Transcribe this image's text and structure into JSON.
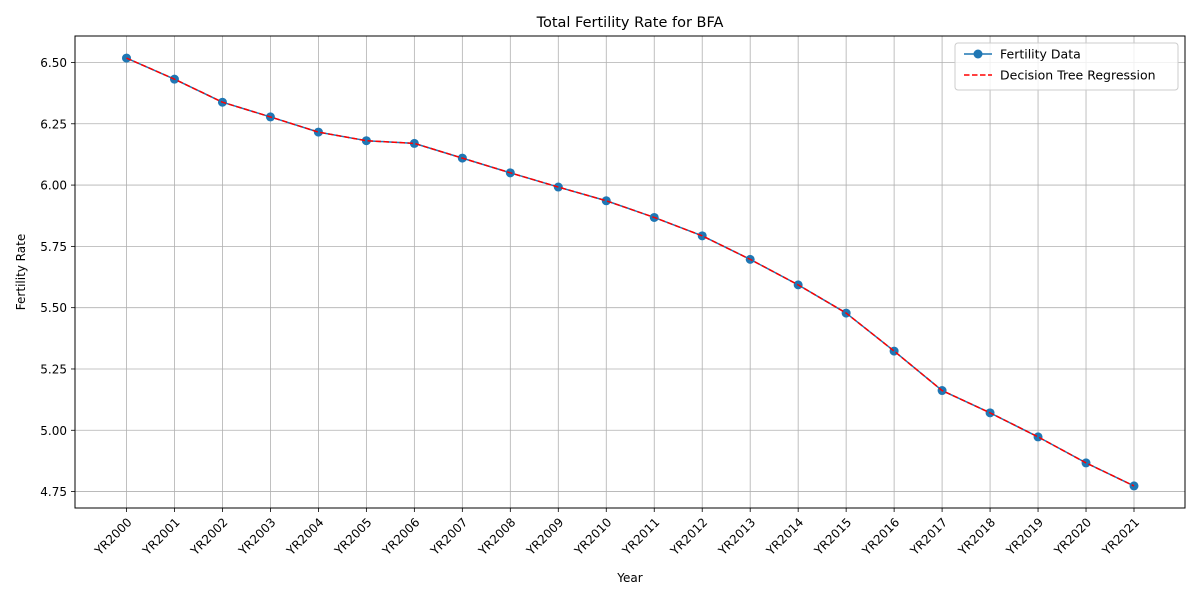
{
  "chart_data": {
    "type": "line",
    "title": "Total Fertility Rate for BFA",
    "xlabel": "Year",
    "ylabel": "Fertility Rate",
    "categories": [
      "YR2000",
      "YR2001",
      "YR2002",
      "YR2003",
      "YR2004",
      "YR2005",
      "YR2006",
      "YR2007",
      "YR2008",
      "YR2009",
      "YR2010",
      "YR2011",
      "YR2012",
      "YR2013",
      "YR2014",
      "YR2015",
      "YR2016",
      "YR2017",
      "YR2018",
      "YR2019",
      "YR2020",
      "YR2021"
    ],
    "series": [
      {
        "name": "Fertility Data",
        "color": "#1f77b4",
        "style": "solid-with-circle-markers",
        "values": [
          6.518,
          6.432,
          6.338,
          6.278,
          6.216,
          6.181,
          6.17,
          6.11,
          6.05,
          5.992,
          5.936,
          5.868,
          5.793,
          5.697,
          5.593,
          5.478,
          5.323,
          5.162,
          5.071,
          4.973,
          4.867,
          4.773
        ]
      },
      {
        "name": "Decision Tree Regression",
        "color": "#ff0000",
        "style": "dashed",
        "values": [
          6.518,
          6.432,
          6.338,
          6.278,
          6.216,
          6.181,
          6.17,
          6.11,
          6.05,
          5.992,
          5.936,
          5.868,
          5.793,
          5.697,
          5.593,
          5.478,
          5.323,
          5.162,
          5.071,
          4.973,
          4.867,
          4.773
        ]
      }
    ],
    "ylim": [
      4.683,
      6.608
    ],
    "yticks": [
      "4.75",
      "5.00",
      "5.25",
      "5.50",
      "5.75",
      "6.00",
      "6.25",
      "6.50"
    ],
    "grid": true,
    "legend_position": "top-right"
  }
}
